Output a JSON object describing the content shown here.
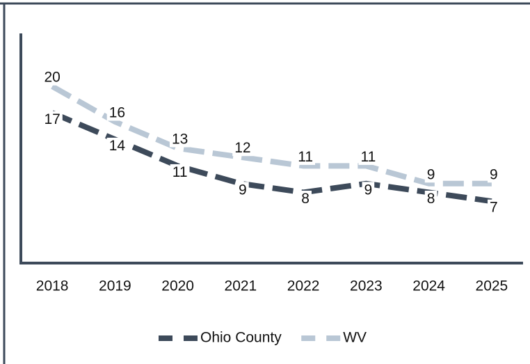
{
  "chart_data": {
    "type": "line",
    "categories": [
      "2018",
      "2019",
      "2020",
      "2021",
      "2022",
      "2023",
      "2024",
      "2025"
    ],
    "series": [
      {
        "name": "Ohio County",
        "color": "#3d4a5a",
        "values": [
          17,
          14,
          11,
          9,
          8,
          9,
          8,
          7
        ]
      },
      {
        "name": "WV",
        "color": "#b9c7d5",
        "values": [
          20,
          16,
          13,
          12,
          11,
          11,
          9,
          9
        ]
      }
    ],
    "ylim": [
      0,
      26
    ],
    "legend": "bottom"
  }
}
